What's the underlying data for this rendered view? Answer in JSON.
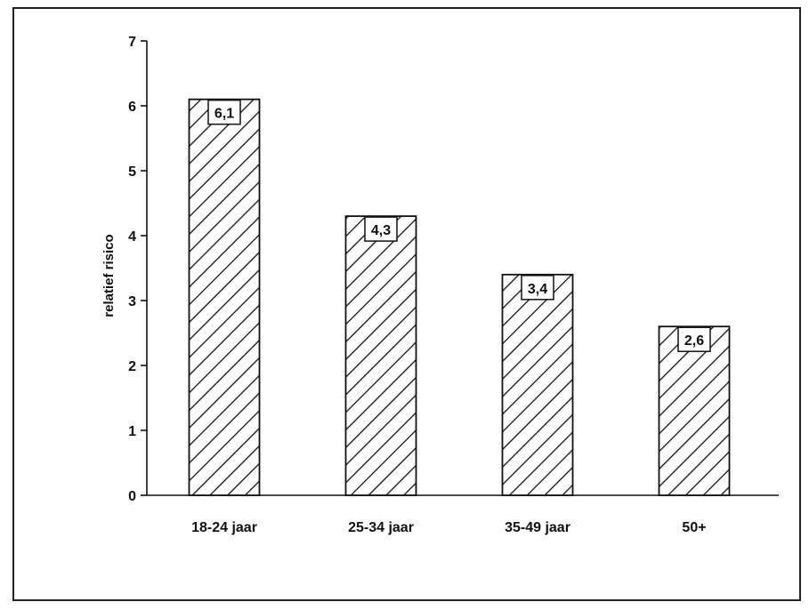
{
  "chart_data": {
    "type": "bar",
    "title": "",
    "xlabel": "",
    "ylabel": "relatief risico",
    "categories": [
      "18-24 jaar",
      "25-34 jaar",
      "35-49 jaar",
      "50+"
    ],
    "values": [
      6.1,
      4.3,
      3.4,
      2.6
    ],
    "value_labels": [
      "6,1",
      "4,3",
      "3,4",
      "2,6"
    ],
    "ylim": [
      0,
      7
    ],
    "yticks": [
      0,
      1,
      2,
      3,
      4,
      5,
      6,
      7
    ],
    "ytick_labels": [
      "0",
      "1",
      "2",
      "3",
      "4",
      "5",
      "6",
      "7"
    ],
    "grid": false,
    "legend": "none",
    "bar_fill": "diagonal-hatch",
    "colors": {
      "bar_stroke": "#111111",
      "hatch": "#111111",
      "axis": "#111111",
      "background": "#ffffff"
    }
  }
}
